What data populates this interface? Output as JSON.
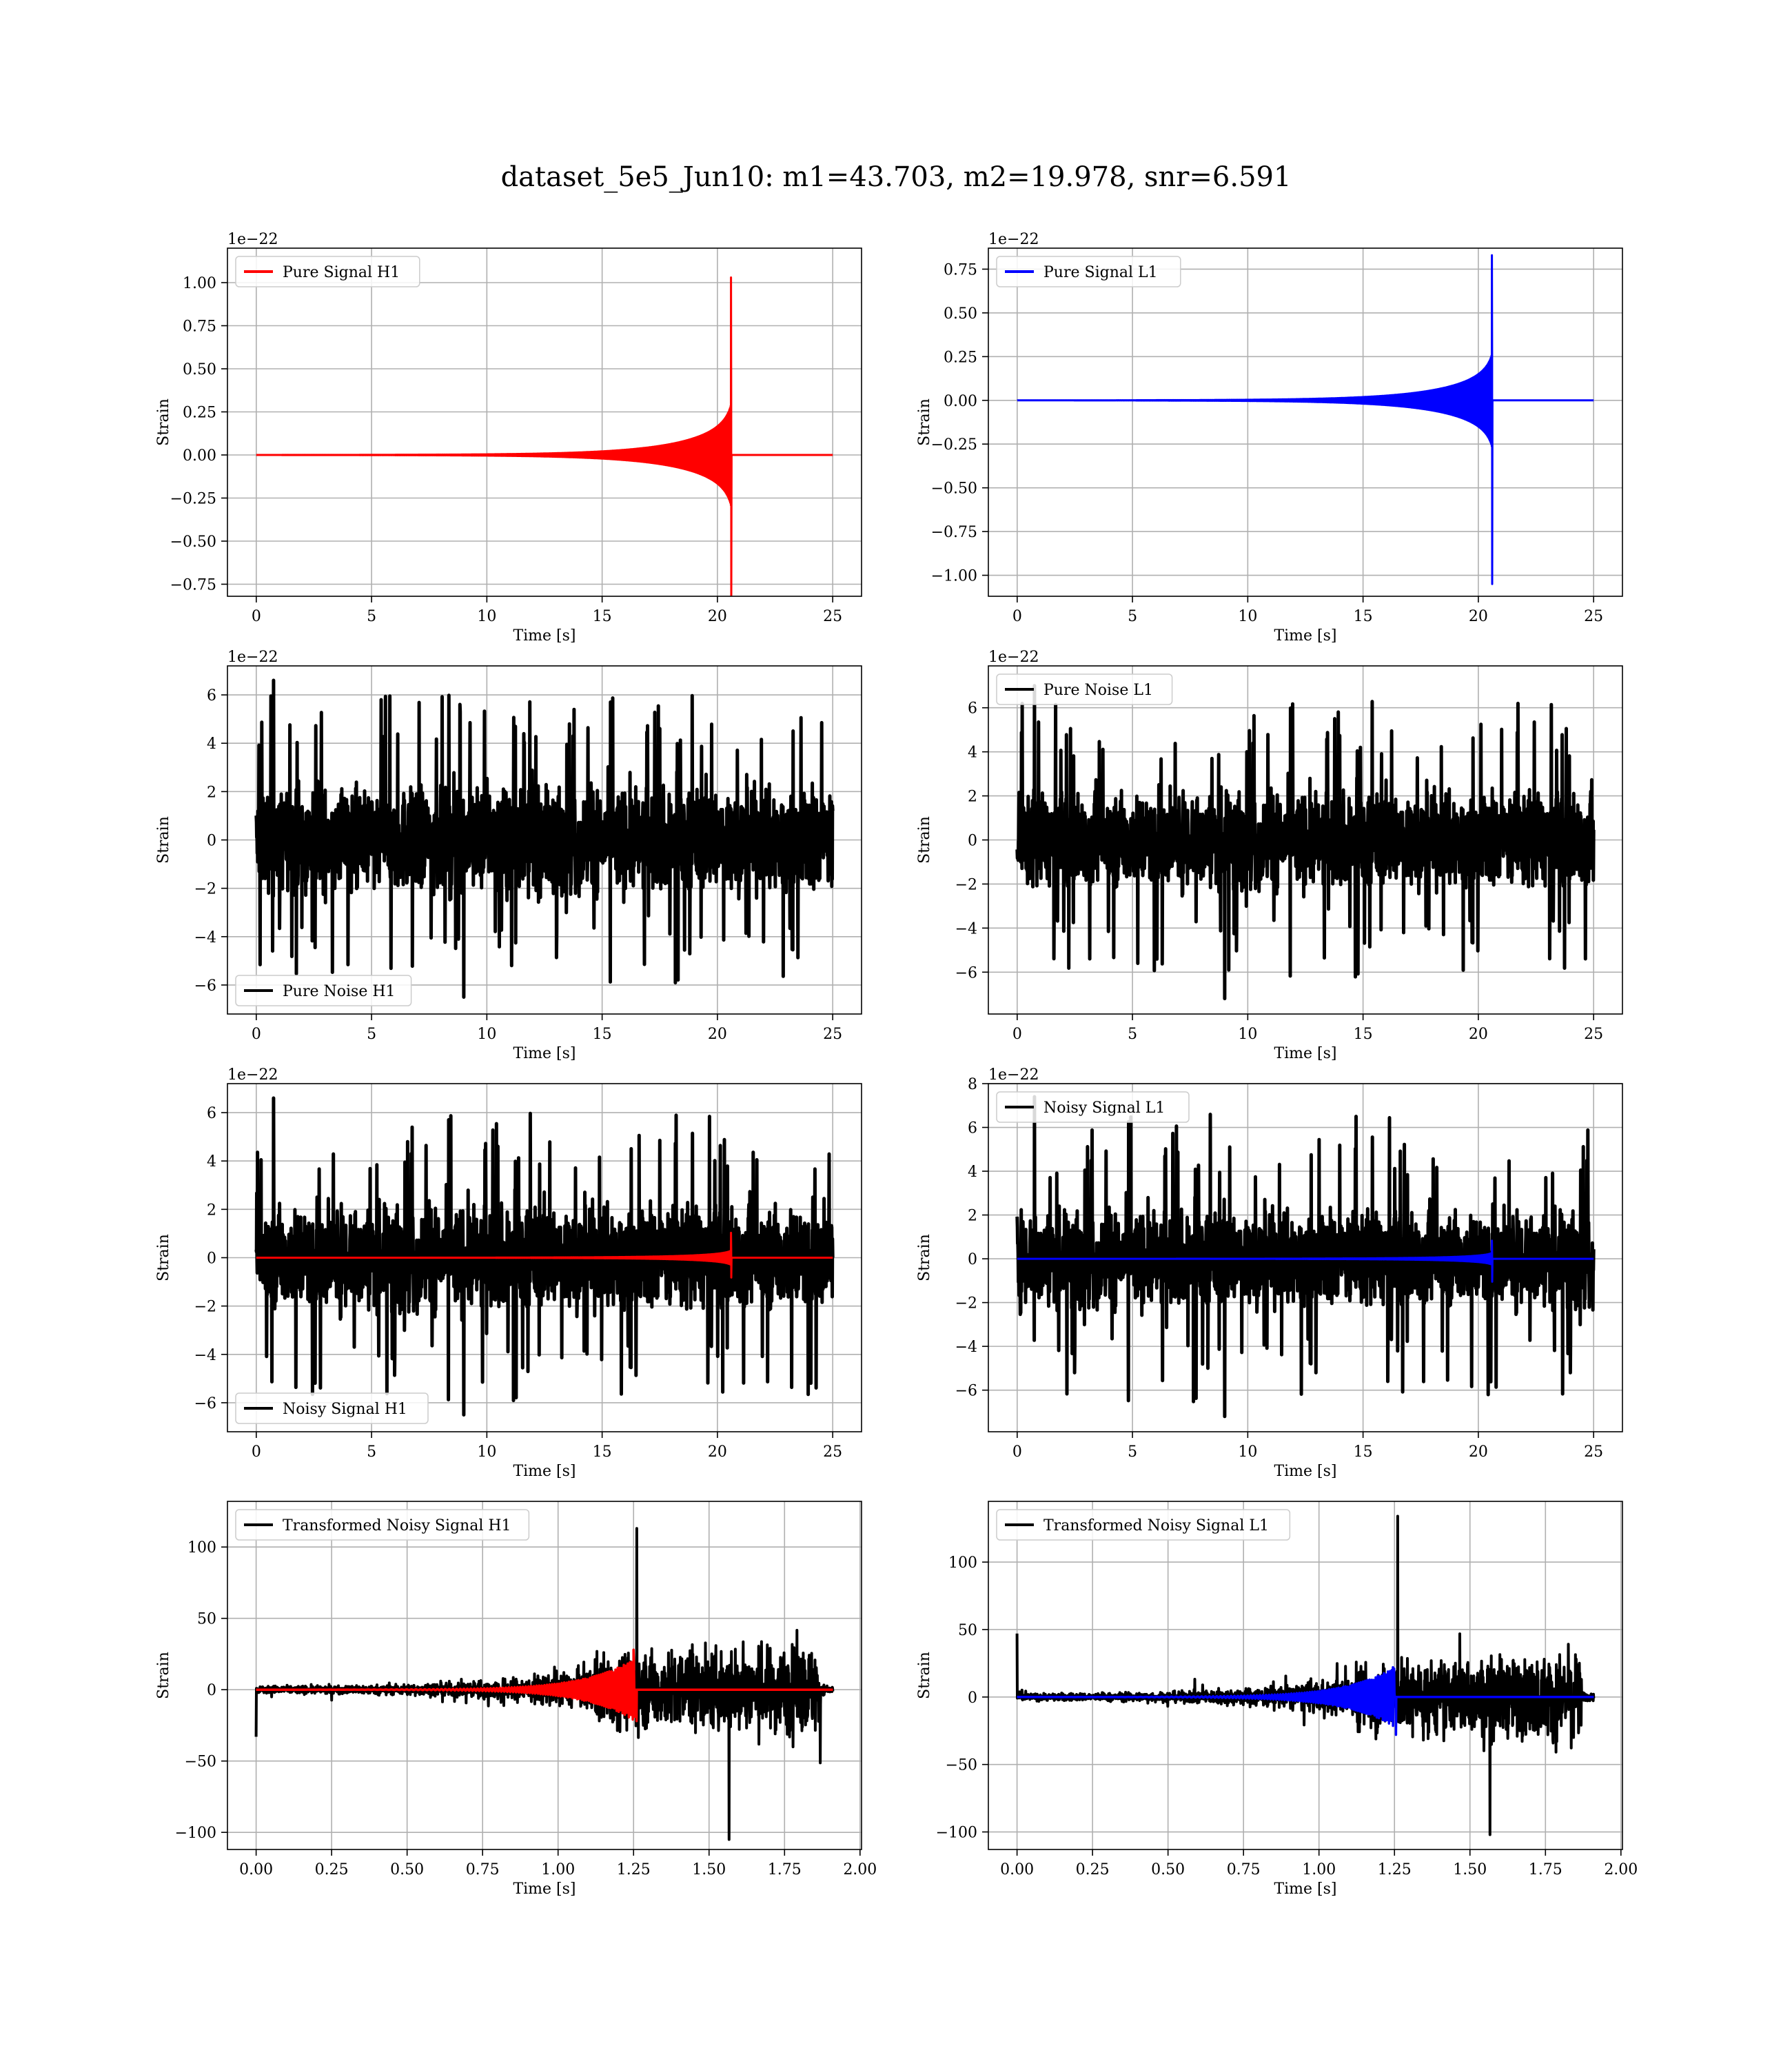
{
  "figure_title": "dataset_5e5_Jun10: m1=43.703, m2=19.978, snr=6.591",
  "chart_data": [
    {
      "type": "line",
      "id": "pure-signal-h1",
      "xlabel": "Time [s]",
      "ylabel": "Strain",
      "offset_text": "1e−22",
      "xlim": [
        -1.25,
        26.25
      ],
      "ylim": [
        -0.82,
        1.2
      ],
      "xticks": [
        0,
        5,
        10,
        15,
        20,
        25
      ],
      "xtick_labels": [
        "0",
        "5",
        "10",
        "15",
        "20",
        "25"
      ],
      "yticks": [
        -0.75,
        -0.5,
        -0.25,
        0,
        0.25,
        0.5,
        0.75,
        1.0
      ],
      "ytick_labels": [
        "−0.75",
        "−0.50",
        "−0.25",
        "0.00",
        "0.25",
        "0.50",
        "0.75",
        "1.00"
      ],
      "legend": "upper left",
      "grid": true,
      "series": [
        {
          "name": "Pure Signal H1",
          "color": "#ff0000",
          "kind": "chirp",
          "duration": 25,
          "merger": 20.6,
          "amp_max": 1.03,
          "amp_min": -0.82,
          "amp_env": 0.3
        }
      ]
    },
    {
      "type": "line",
      "id": "pure-signal-l1",
      "xlabel": "Time [s]",
      "ylabel": "Strain",
      "offset_text": "1e−22",
      "xlim": [
        -1.25,
        26.25
      ],
      "ylim": [
        -1.12,
        0.87
      ],
      "xticks": [
        0,
        5,
        10,
        15,
        20,
        25
      ],
      "xtick_labels": [
        "0",
        "5",
        "10",
        "15",
        "20",
        "25"
      ],
      "yticks": [
        -1.0,
        -0.75,
        -0.5,
        -0.25,
        0,
        0.25,
        0.5,
        0.75
      ],
      "ytick_labels": [
        "−1.00",
        "−0.75",
        "−0.50",
        "−0.25",
        "0.00",
        "0.25",
        "0.50",
        "0.75"
      ],
      "legend": "upper left",
      "grid": true,
      "series": [
        {
          "name": "Pure Signal L1",
          "color": "#0000ff",
          "kind": "chirp",
          "duration": 25,
          "merger": 20.6,
          "amp_max": 0.83,
          "amp_min": -1.05,
          "amp_env": 0.27
        }
      ]
    },
    {
      "type": "line",
      "id": "pure-noise-h1",
      "xlabel": "Time [s]",
      "ylabel": "Strain",
      "offset_text": "1e−22",
      "xlim": [
        -1.25,
        26.25
      ],
      "ylim": [
        -7.2,
        7.2
      ],
      "xticks": [
        0,
        5,
        10,
        15,
        20,
        25
      ],
      "xtick_labels": [
        "0",
        "5",
        "10",
        "15",
        "20",
        "25"
      ],
      "yticks": [
        -6,
        -4,
        -2,
        0,
        2,
        4,
        6
      ],
      "ytick_labels": [
        "−6",
        "−4",
        "−2",
        "0",
        "2",
        "4",
        "6"
      ],
      "legend": "lower left",
      "grid": true,
      "series": [
        {
          "name": "Pure Noise H1",
          "color": "#000000",
          "kind": "noise",
          "duration": 25,
          "band": 3.6,
          "peak_max": 6.6,
          "peak_min": -6.5
        }
      ]
    },
    {
      "type": "line",
      "id": "pure-noise-l1",
      "xlabel": "Time [s]",
      "ylabel": "Strain",
      "offset_text": "1e−22",
      "xlim": [
        -1.25,
        26.25
      ],
      "ylim": [
        -7.9,
        7.9
      ],
      "xticks": [
        0,
        5,
        10,
        15,
        20,
        25
      ],
      "xtick_labels": [
        "0",
        "5",
        "10",
        "15",
        "20",
        "25"
      ],
      "yticks": [
        -6,
        -4,
        -2,
        0,
        2,
        4,
        6
      ],
      "ytick_labels": [
        "−6",
        "−4",
        "−2",
        "0",
        "2",
        "4",
        "6"
      ],
      "legend": "upper left",
      "grid": true,
      "series": [
        {
          "name": "Pure Noise L1",
          "color": "#000000",
          "kind": "noise",
          "duration": 25,
          "band": 3.6,
          "peak_max": 7.0,
          "peak_min": -7.2
        }
      ]
    },
    {
      "type": "line",
      "id": "noisy-signal-h1",
      "xlabel": "Time [s]",
      "ylabel": "Strain",
      "offset_text": "1e−22",
      "xlim": [
        -1.25,
        26.25
      ],
      "ylim": [
        -7.2,
        7.2
      ],
      "xticks": [
        0,
        5,
        10,
        15,
        20,
        25
      ],
      "xtick_labels": [
        "0",
        "5",
        "10",
        "15",
        "20",
        "25"
      ],
      "yticks": [
        -6,
        -4,
        -2,
        0,
        2,
        4,
        6
      ],
      "ytick_labels": [
        "−6",
        "−4",
        "−2",
        "0",
        "2",
        "4",
        "6"
      ],
      "legend": "lower left",
      "grid": true,
      "series": [
        {
          "name": "Noisy Signal H1",
          "color": "#000000",
          "kind": "noise",
          "duration": 25,
          "band": 3.6,
          "peak_max": 6.6,
          "peak_min": -6.5
        },
        {
          "name": "",
          "color": "#ff0000",
          "kind": "chirp",
          "duration": 25,
          "merger": 20.6,
          "amp_max": 1.03,
          "amp_min": -0.82,
          "amp_env": 0.3
        }
      ]
    },
    {
      "type": "line",
      "id": "noisy-signal-l1",
      "xlabel": "Time [s]",
      "ylabel": "Strain",
      "offset_text": "1e−22",
      "xlim": [
        -1.25,
        26.25
      ],
      "ylim": [
        -7.9,
        8.0
      ],
      "xticks": [
        0,
        5,
        10,
        15,
        20,
        25
      ],
      "xtick_labels": [
        "0",
        "5",
        "10",
        "15",
        "20",
        "25"
      ],
      "yticks": [
        -6,
        -4,
        -2,
        0,
        2,
        4,
        6,
        8
      ],
      "ytick_labels": [
        "−6",
        "−4",
        "−2",
        "0",
        "2",
        "4",
        "6",
        "8"
      ],
      "legend": "upper left",
      "grid": true,
      "series": [
        {
          "name": "Noisy Signal L1",
          "color": "#000000",
          "kind": "noise",
          "duration": 25,
          "band": 3.6,
          "peak_max": 7.4,
          "peak_min": -7.2
        },
        {
          "name": "",
          "color": "#0000ff",
          "kind": "chirp",
          "duration": 25,
          "merger": 20.6,
          "amp_max": 0.83,
          "amp_min": -1.05,
          "amp_env": 0.27
        }
      ]
    },
    {
      "type": "line",
      "id": "transformed-noisy-signal-h1",
      "xlabel": "Time [s]",
      "ylabel": "Strain",
      "offset_text": "",
      "xlim": [
        -0.095,
        2.005
      ],
      "ylim": [
        -112,
        132
      ],
      "xticks": [
        0,
        0.25,
        0.5,
        0.75,
        1.0,
        1.25,
        1.5,
        1.75,
        2.0
      ],
      "xtick_labels": [
        "0.00",
        "0.25",
        "0.50",
        "0.75",
        "1.00",
        "1.25",
        "1.50",
        "1.75",
        "2.00"
      ],
      "yticks": [
        -100,
        -50,
        0,
        50,
        100
      ],
      "ytick_labels": [
        "−100",
        "−50",
        "0",
        "50",
        "100"
      ],
      "legend": "upper left",
      "grid": true,
      "series": [
        {
          "name": "Transformed Noisy Signal H1",
          "color": "#000000",
          "kind": "tnoise",
          "duration": 1.91,
          "end": 1.87,
          "start_spike": -33,
          "peak_max": 113,
          "peak_min": -105
        },
        {
          "name": "",
          "color": "#ff0000",
          "kind": "tchirp",
          "duration": 1.91,
          "merger": 1.255,
          "amp_max": 28,
          "amp_min": -22
        }
      ]
    },
    {
      "type": "line",
      "id": "transformed-noisy-signal-l1",
      "xlabel": "Time [s]",
      "ylabel": "Strain",
      "offset_text": "",
      "xlim": [
        -0.095,
        2.005
      ],
      "ylim": [
        -113,
        145
      ],
      "xticks": [
        0,
        0.25,
        0.5,
        0.75,
        1.0,
        1.25,
        1.5,
        1.75,
        2.0
      ],
      "xtick_labels": [
        "0.00",
        "0.25",
        "0.50",
        "0.75",
        "1.00",
        "1.25",
        "1.50",
        "1.75",
        "2.00"
      ],
      "yticks": [
        -100,
        -50,
        0,
        50,
        100
      ],
      "ytick_labels": [
        "−100",
        "−50",
        "0",
        "50",
        "100"
      ],
      "legend": "upper left",
      "grid": true,
      "series": [
        {
          "name": "Transformed Noisy Signal L1",
          "color": "#000000",
          "kind": "tnoise",
          "duration": 1.91,
          "end": 1.87,
          "start_spike": 47,
          "peak_max": 134,
          "peak_min": -102
        },
        {
          "name": "",
          "color": "#0000ff",
          "kind": "tchirp",
          "duration": 1.91,
          "merger": 1.25,
          "amp_max": 22,
          "amp_min": -28
        }
      ]
    }
  ]
}
